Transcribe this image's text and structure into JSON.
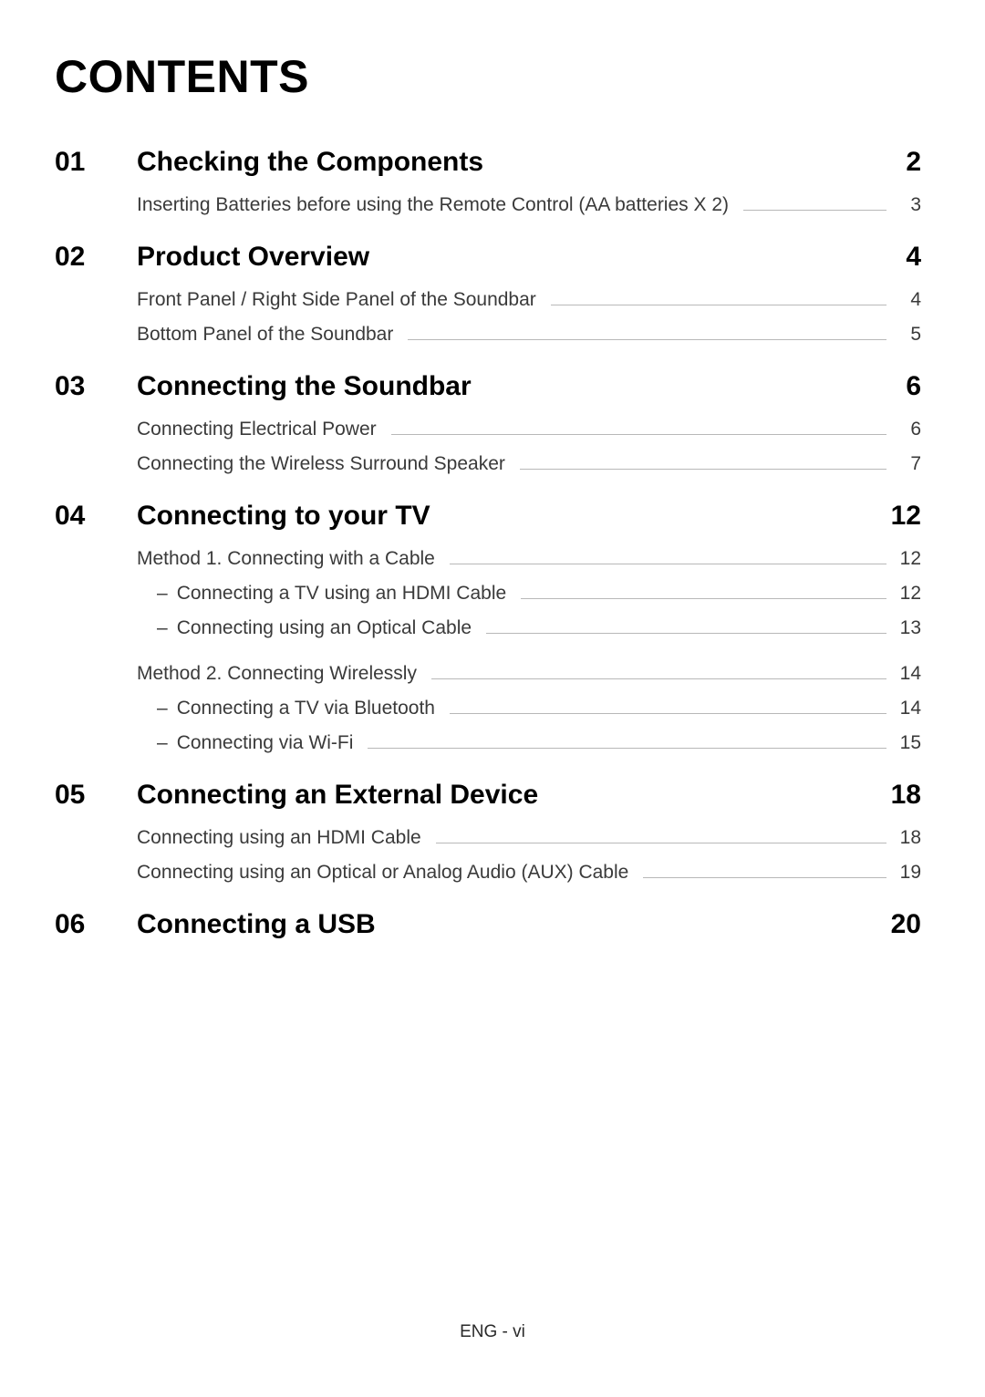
{
  "title": "CONTENTS",
  "footer": "ENG - vi",
  "colors": {
    "text": "#000000",
    "subtext": "#3a3a3a",
    "leader": "#b8b8b8",
    "bg": "#ffffff"
  },
  "sections": [
    {
      "num": "01",
      "title": "Checking the Components",
      "page": "2",
      "subs": [
        {
          "text": "Inserting Batteries before using the Remote Control (AA batteries X 2)",
          "page": "3"
        }
      ]
    },
    {
      "num": "02",
      "title": "Product Overview",
      "page": "4",
      "subs": [
        {
          "text": "Front Panel / Right Side Panel of the Soundbar",
          "page": "4"
        },
        {
          "text": "Bottom Panel of the Soundbar",
          "page": "5"
        }
      ]
    },
    {
      "num": "03",
      "title": "Connecting the Soundbar",
      "page": "6",
      "subs": [
        {
          "text": "Connecting Electrical Power",
          "page": "6"
        },
        {
          "text": "Connecting the Wireless Surround Speaker",
          "page": "7"
        }
      ]
    },
    {
      "num": "04",
      "title": "Connecting to your TV",
      "page": "12",
      "subs": [
        {
          "text": "Method 1. Connecting with a Cable",
          "page": "12",
          "children": [
            {
              "text": "Connecting a TV using an HDMI Cable",
              "page": "12"
            },
            {
              "text": "Connecting using an Optical Cable",
              "page": "13"
            }
          ]
        },
        {
          "text": "Method 2. Connecting Wirelessly",
          "page": "14",
          "gap": true,
          "children": [
            {
              "text": "Connecting a TV via Bluetooth",
              "page": "14"
            },
            {
              "text": "Connecting via Wi-Fi",
              "page": "15"
            }
          ]
        }
      ]
    },
    {
      "num": "05",
      "title": "Connecting an External Device",
      "page": "18",
      "subs": [
        {
          "text": "Connecting using an HDMI Cable",
          "page": "18"
        },
        {
          "text": "Connecting using an Optical or Analog Audio (AUX) Cable",
          "page": "19"
        }
      ]
    },
    {
      "num": "06",
      "title": "Connecting a USB",
      "page": "20",
      "subs": []
    }
  ]
}
